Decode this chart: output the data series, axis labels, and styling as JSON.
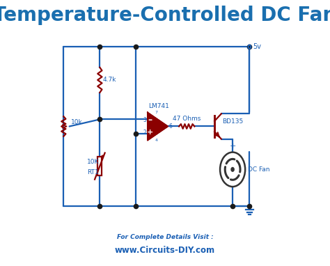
{
  "title": "Temperature-Controlled DC Fan",
  "title_color": "#1a6faf",
  "title_fontsize": 20,
  "bg_color": "#ffffff",
  "wire_color": "#1a5fb4",
  "component_color": "#8B0000",
  "label_color": "#1a5fb4",
  "footer1": "For Complete Details Visit :",
  "footer2": "www.Circuits-DIY.com",
  "footer_color": "#1a5fb4",
  "node_color": "#1a1a1a"
}
